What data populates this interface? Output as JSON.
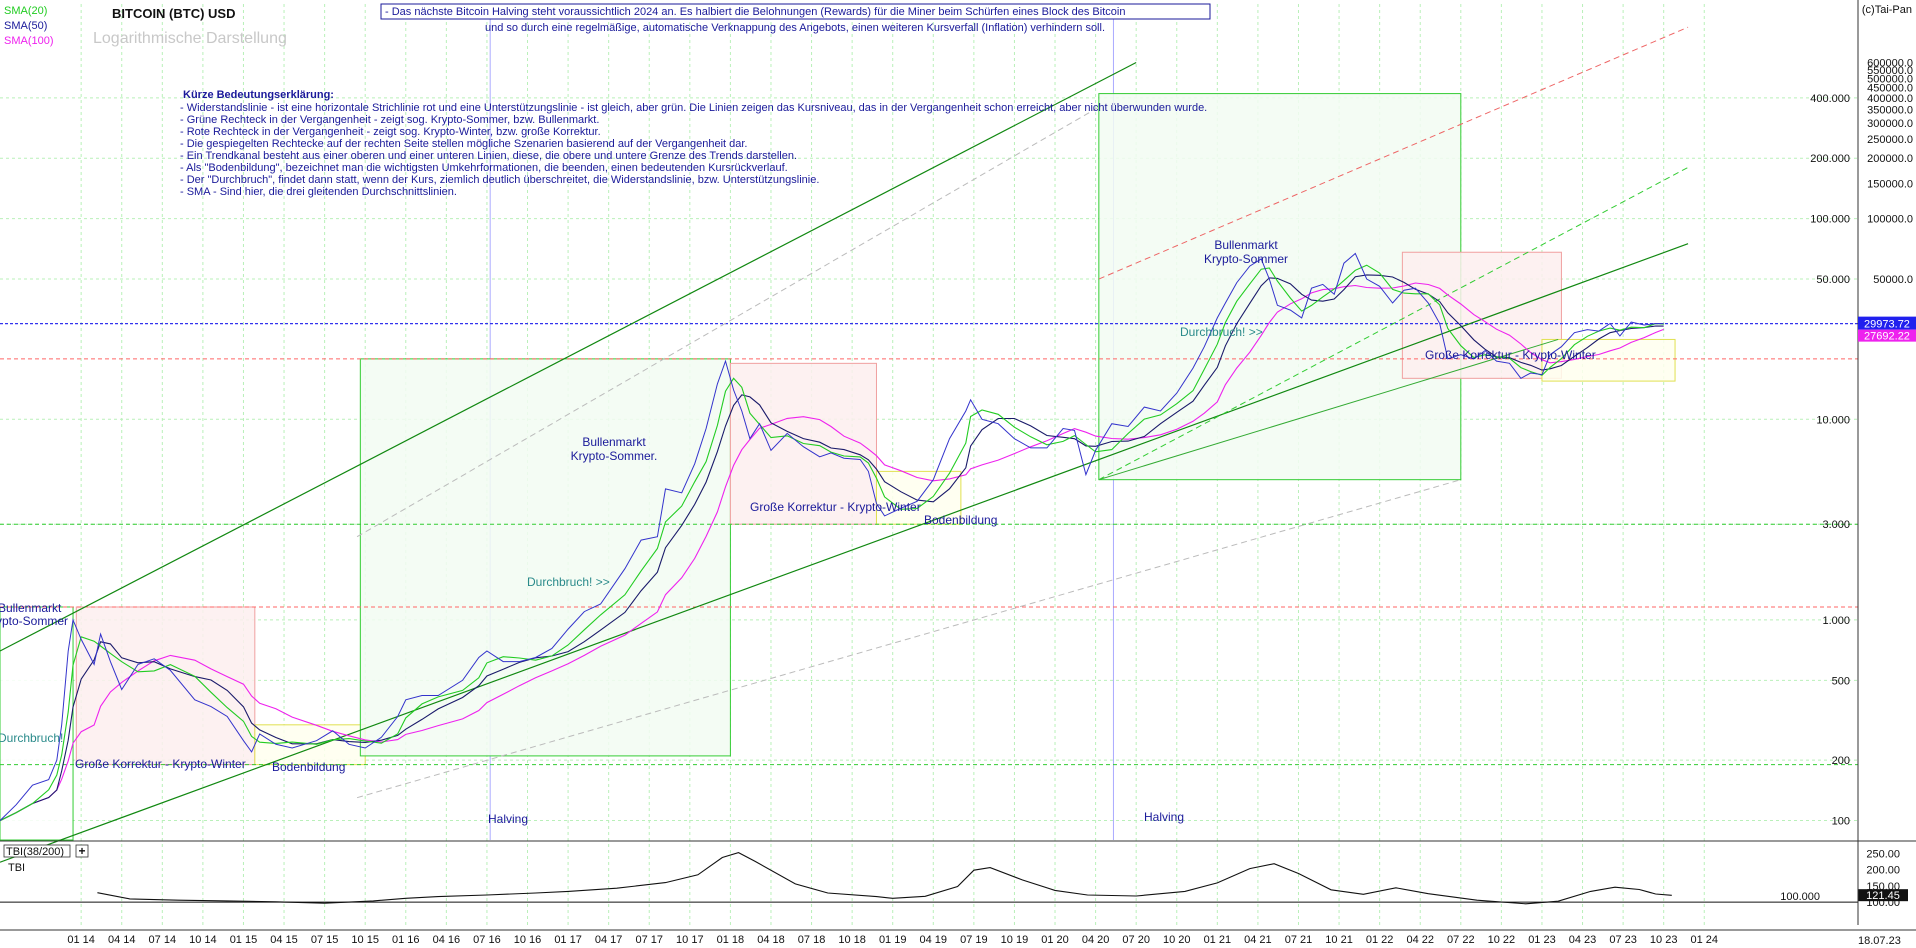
{
  "header": {
    "title": "BITCOIN (BTC) USD",
    "subtitle": "Logarithmische Darstellung",
    "copyright": "(c)Tai-Pan",
    "date": "18.07.23",
    "sma_legend": [
      {
        "label": "SMA(20)",
        "color": "#22cc22"
      },
      {
        "label": "SMA(50)",
        "color": "#1a1a9a"
      },
      {
        "label": "SMA(100)",
        "color": "#ee22ee"
      }
    ],
    "notice_line1": "- Das nächste Bitcoin Halving steht voraussichtlich 2024 an. Es halbiert die Belohnungen (Rewards) für die Miner beim Schürfen eines Block des Bitcoin",
    "notice_line2": "und so durch eine regelmäßige, automatische Verknappung des Angebots, einen weiteren Kursverfall (Inflation) verhindern soll."
  },
  "legend_box": {
    "heading": "Kürze Bedeutungserklärung:",
    "lines": [
      "- Widerstandslinie - ist eine horizontale Strichlinie rot und eine Unterstützungslinie - ist gleich, aber grün. Die Linien zeigen das Kursniveau, das in der Vergangenheit schon erreicht, aber nicht überwunden wurde.",
      "- Grüne Rechteck in der Vergangenheit - zeigt sog. Krypto-Sommer, bzw. Bullenmarkt.",
      "- Rote Rechteck in der Vergangenheit - zeigt sog. Krypto-Winter, bzw. große Korrektur.",
      "- Die gespiegelten Rechtecke auf der rechten Seite stellen mögliche Szenarien basierend auf der Vergangenheit dar.",
      "- Ein Trendkanal besteht aus einer oberen und einer unteren Linien, diese, die obere und untere Grenze des Trends darstellen.",
      "- Als \"Bodenbildung\", bezeichnet man die wichtigsten Umkehrformationen, die beenden, einen bedeutenden Kursrückverlauf.",
      "- Der \"Durchbruch\", findet dann statt, wenn der Kurs, ziemlich deutlich überschreitet, die Widerstandslinie, bzw. Unterstützungslinie.",
      "- SMA - Sind hier, die drei gleitenden Durchschnittslinien."
    ]
  },
  "annotations": {
    "bull_2013": "Bullenmarkt\nKrypto-Sommer",
    "breakout_2013": "Durchbruch!",
    "korrektur_2014": "Große Korrektur - Krypto-Winter",
    "boden_2015": "Bodenbildung",
    "bull_2016": "Bullenmarkt\nKrypto-Sommer.",
    "breakout_2016": "Durchbruch! >>",
    "korrektur_2018": "Große Korrektur - Krypto-Winter",
    "boden_2019": "Bodenbildung",
    "bull_2020": "Bullenmarkt\nKrypto-Sommer",
    "breakout_2020": "Durchbruch! >>",
    "korrektur_2022": "Große Korrektur - Krypto-Winter",
    "halving_1": "Halving",
    "halving_2": "Halving"
  },
  "indicator": {
    "label": "TBI(38/200)",
    "sublabel": "TBI",
    "axis_ticks": [
      "250.00",
      "200.00",
      "150.00",
      "100.00"
    ],
    "current_value": "121.45",
    "baseline_label": "100.000",
    "series": [
      [
        14.1,
        129
      ],
      [
        14.3,
        110
      ],
      [
        14.6,
        106
      ],
      [
        14.9,
        104
      ],
      [
        15.2,
        101
      ],
      [
        15.5,
        97
      ],
      [
        15.8,
        104
      ],
      [
        16.0,
        112
      ],
      [
        16.2,
        117
      ],
      [
        16.5,
        122
      ],
      [
        16.8,
        128
      ],
      [
        17.0,
        133
      ],
      [
        17.3,
        143
      ],
      [
        17.6,
        160
      ],
      [
        17.8,
        184
      ],
      [
        17.95,
        237
      ],
      [
        18.05,
        252
      ],
      [
        18.15,
        226
      ],
      [
        18.4,
        156
      ],
      [
        18.6,
        128
      ],
      [
        18.9,
        117
      ],
      [
        19.0,
        112
      ],
      [
        19.2,
        118
      ],
      [
        19.4,
        148
      ],
      [
        19.5,
        198
      ],
      [
        19.6,
        206
      ],
      [
        19.8,
        168
      ],
      [
        20.0,
        136
      ],
      [
        20.2,
        122
      ],
      [
        20.5,
        119
      ],
      [
        20.8,
        133
      ],
      [
        21.0,
        159
      ],
      [
        21.2,
        203
      ],
      [
        21.35,
        218
      ],
      [
        21.5,
        188
      ],
      [
        21.7,
        138
      ],
      [
        21.9,
        124
      ],
      [
        22.1,
        144
      ],
      [
        22.3,
        126
      ],
      [
        22.6,
        106
      ],
      [
        22.9,
        95
      ],
      [
        23.1,
        103
      ],
      [
        23.3,
        133
      ],
      [
        23.45,
        146
      ],
      [
        23.6,
        139
      ],
      [
        23.7,
        125
      ],
      [
        23.8,
        121
      ]
    ]
  },
  "chart_data": {
    "type": "line",
    "title": "BITCOIN (BTC) USD",
    "scale": "log",
    "x_unit": "year (decimal)",
    "xlim": [
      13.5,
      24.75
    ],
    "ylim": [
      80,
      1000000
    ],
    "price_ticks": [
      100,
      200,
      500,
      1000,
      3000,
      10000,
      50000,
      100000,
      200000,
      400000
    ],
    "price_tick_labels": [
      "100",
      "200",
      "500",
      "1.000",
      "3.000",
      "10.000",
      "50.000",
      "100.000",
      "200.000",
      "400.000"
    ],
    "upper_tick_labels": [
      "600000.0",
      "550000.0",
      "500000.0",
      "450000.0",
      "400000.0",
      "350000.0",
      "300000.0",
      "250000.0",
      "200000.0",
      "150000.0",
      "100000.0",
      "50000.0"
    ],
    "current_price": "29973.72",
    "current_sma": "27692.22",
    "x_ticks": [
      "01 14",
      "04 14",
      "07 14",
      "10 14",
      "01 15",
      "04 15",
      "07 15",
      "10 15",
      "01 16",
      "04 16",
      "07 16",
      "10 16",
      "01 17",
      "04 17",
      "07 17",
      "10 17",
      "01 18",
      "04 18",
      "07 18",
      "10 18",
      "01 19",
      "04 19",
      "07 19",
      "10 19",
      "01 20",
      "04 20",
      "07 20",
      "10 20",
      "01 21",
      "04 21",
      "07 21",
      "10 21",
      "01 22",
      "04 22",
      "07 22",
      "10 22",
      "01 23",
      "04 23",
      "07 23",
      "10 23",
      "01 24"
    ],
    "series": [
      {
        "name": "BTC",
        "values": [
          [
            13.5,
            100
          ],
          [
            13.6,
            120
          ],
          [
            13.7,
            150
          ],
          [
            13.8,
            160
          ],
          [
            13.85,
            200
          ],
          [
            13.88,
            300
          ],
          [
            13.92,
            700
          ],
          [
            13.95,
            1000
          ],
          [
            14.0,
            800
          ],
          [
            14.08,
            600
          ],
          [
            14.12,
            850
          ],
          [
            14.18,
            620
          ],
          [
            14.25,
            450
          ],
          [
            14.35,
            600
          ],
          [
            14.45,
            640
          ],
          [
            14.55,
            560
          ],
          [
            14.7,
            400
          ],
          [
            14.8,
            370
          ],
          [
            14.9,
            330
          ],
          [
            15.0,
            250
          ],
          [
            15.05,
            220
          ],
          [
            15.1,
            270
          ],
          [
            15.2,
            240
          ],
          [
            15.3,
            230
          ],
          [
            15.45,
            250
          ],
          [
            15.55,
            280
          ],
          [
            15.65,
            240
          ],
          [
            15.75,
            230
          ],
          [
            15.85,
            260
          ],
          [
            15.95,
            330
          ],
          [
            16.0,
            400
          ],
          [
            16.1,
            420
          ],
          [
            16.2,
            420
          ],
          [
            16.35,
            500
          ],
          [
            16.45,
            650
          ],
          [
            16.5,
            700
          ],
          [
            16.6,
            620
          ],
          [
            16.7,
            620
          ],
          [
            16.8,
            650
          ],
          [
            16.9,
            720
          ],
          [
            17.0,
            900
          ],
          [
            17.1,
            1100
          ],
          [
            17.2,
            1200
          ],
          [
            17.35,
            1800
          ],
          [
            17.45,
            2500
          ],
          [
            17.55,
            2600
          ],
          [
            17.6,
            4500
          ],
          [
            17.7,
            4300
          ],
          [
            17.78,
            6000
          ],
          [
            17.85,
            9000
          ],
          [
            17.92,
            15000
          ],
          [
            17.97,
            19500
          ],
          [
            18.02,
            14000
          ],
          [
            18.07,
            11000
          ],
          [
            18.12,
            8000
          ],
          [
            18.18,
            9500
          ],
          [
            18.25,
            7000
          ],
          [
            18.35,
            8500
          ],
          [
            18.45,
            7300
          ],
          [
            18.55,
            6500
          ],
          [
            18.62,
            6800
          ],
          [
            18.7,
            6400
          ],
          [
            18.8,
            6300
          ],
          [
            18.85,
            5500
          ],
          [
            18.9,
            3800
          ],
          [
            18.95,
            3300
          ],
          [
            19.05,
            3600
          ],
          [
            19.15,
            3900
          ],
          [
            19.25,
            5000
          ],
          [
            19.35,
            8000
          ],
          [
            19.45,
            11000
          ],
          [
            19.48,
            12500
          ],
          [
            19.55,
            10000
          ],
          [
            19.65,
            9500
          ],
          [
            19.75,
            8000
          ],
          [
            19.85,
            7200
          ],
          [
            19.95,
            7200
          ],
          [
            20.05,
            9000
          ],
          [
            20.12,
            8800
          ],
          [
            20.19,
            5300
          ],
          [
            20.25,
            7000
          ],
          [
            20.35,
            9500
          ],
          [
            20.45,
            9200
          ],
          [
            20.55,
            11500
          ],
          [
            20.65,
            11000
          ],
          [
            20.75,
            13500
          ],
          [
            20.85,
            18000
          ],
          [
            20.92,
            23000
          ],
          [
            21.0,
            32000
          ],
          [
            21.05,
            38000
          ],
          [
            21.12,
            48000
          ],
          [
            21.2,
            58000
          ],
          [
            21.27,
            63000
          ],
          [
            21.32,
            50000
          ],
          [
            21.37,
            37000
          ],
          [
            21.45,
            35000
          ],
          [
            21.52,
            32000
          ],
          [
            21.58,
            45000
          ],
          [
            21.65,
            47000
          ],
          [
            21.72,
            42000
          ],
          [
            21.78,
            60000
          ],
          [
            21.85,
            67000
          ],
          [
            21.92,
            50000
          ],
          [
            22.0,
            46000
          ],
          [
            22.08,
            38000
          ],
          [
            22.15,
            44000
          ],
          [
            22.22,
            45000
          ],
          [
            22.3,
            38000
          ],
          [
            22.37,
            30000
          ],
          [
            22.42,
            20000
          ],
          [
            22.5,
            21000
          ],
          [
            22.58,
            20000
          ],
          [
            22.65,
            22000
          ],
          [
            22.72,
            19500
          ],
          [
            22.8,
            19000
          ],
          [
            22.87,
            16000
          ],
          [
            22.93,
            17000
          ],
          [
            23.0,
            16700
          ],
          [
            23.05,
            21000
          ],
          [
            23.12,
            23000
          ],
          [
            23.2,
            27000
          ],
          [
            23.28,
            28000
          ],
          [
            23.35,
            27500
          ],
          [
            23.42,
            30000
          ],
          [
            23.48,
            26000
          ],
          [
            23.55,
            30500
          ],
          [
            23.63,
            29500
          ],
          [
            23.7,
            30000
          ],
          [
            23.75,
            29973
          ]
        ]
      }
    ]
  }
}
